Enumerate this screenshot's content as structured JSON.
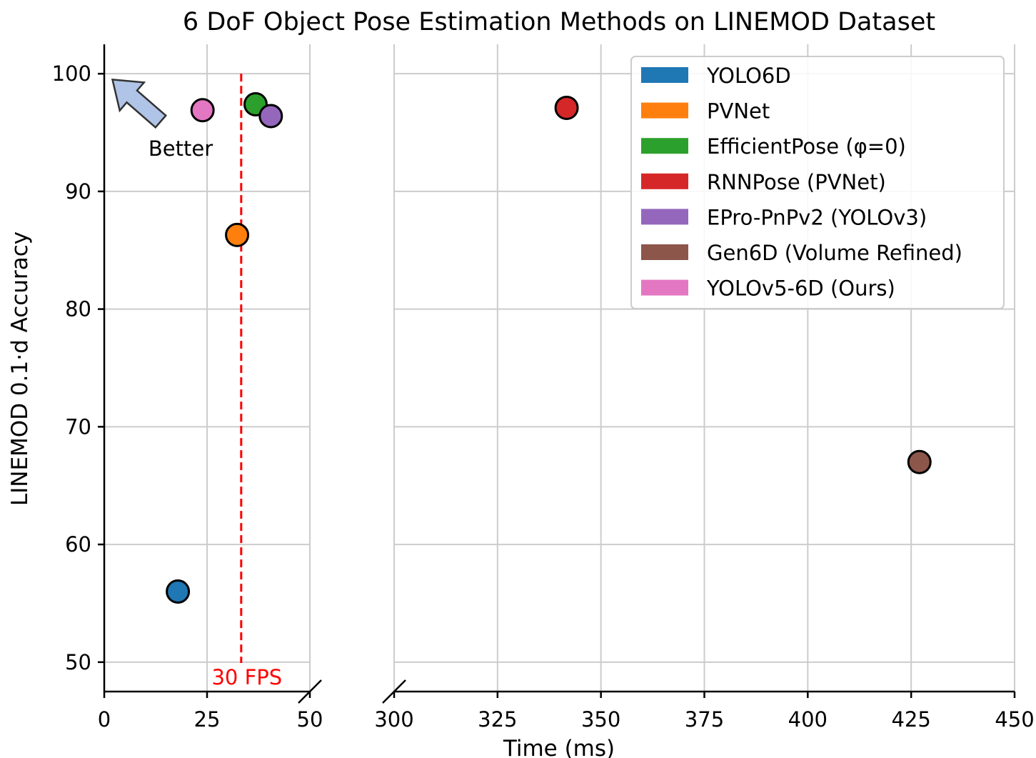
{
  "chart_data": {
    "type": "scatter",
    "title": "6 DoF Object Pose Estimation Methods on LINEMOD Dataset",
    "xlabel": "Time (ms)",
    "ylabel": "LINEMOD 0.1·d Accuracy",
    "x_broken_axis": true,
    "xlim_left": [
      0,
      50
    ],
    "xlim_right": [
      300,
      450
    ],
    "ylim": [
      47.5,
      102.5
    ],
    "xticks_left": [
      0,
      25,
      50
    ],
    "xticks_right": [
      300,
      325,
      350,
      375,
      400,
      425,
      450
    ],
    "yticks": [
      50,
      60,
      70,
      80,
      90,
      100
    ],
    "grid": true,
    "legend_position": "top-right",
    "series": [
      {
        "name": "YOLO6D",
        "x": 17.9,
        "y": 56.0,
        "color": "#1f77b4"
      },
      {
        "name": "PVNet",
        "x": 32.3,
        "y": 86.3,
        "color": "#ff7f0e"
      },
      {
        "name": "EfficientPose (φ=0)",
        "x": 36.8,
        "y": 97.4,
        "color": "#2ca02c"
      },
      {
        "name": "RNNPose (PVNet)",
        "x": 341.7,
        "y": 97.1,
        "color": "#d62728"
      },
      {
        "name": "EPro-PnPv2 (YOLOv3)",
        "x": 40.5,
        "y": 96.4,
        "color": "#9467bd"
      },
      {
        "name": "Gen6D (Volume Refined)",
        "x": 427.0,
        "y": 67.0,
        "color": "#8c564b"
      },
      {
        "name": "YOLOv5-6D (Ours)",
        "x": 23.9,
        "y": 96.9,
        "color": "#e377c2"
      }
    ],
    "reference_line": {
      "x": 33.3,
      "label": "30 FPS",
      "color": "#ff0000",
      "style": "dashed"
    },
    "annotation": {
      "text": "Better",
      "arrow_to": [
        2,
        99.5
      ],
      "arrow_color": "#b0c4e8"
    }
  }
}
